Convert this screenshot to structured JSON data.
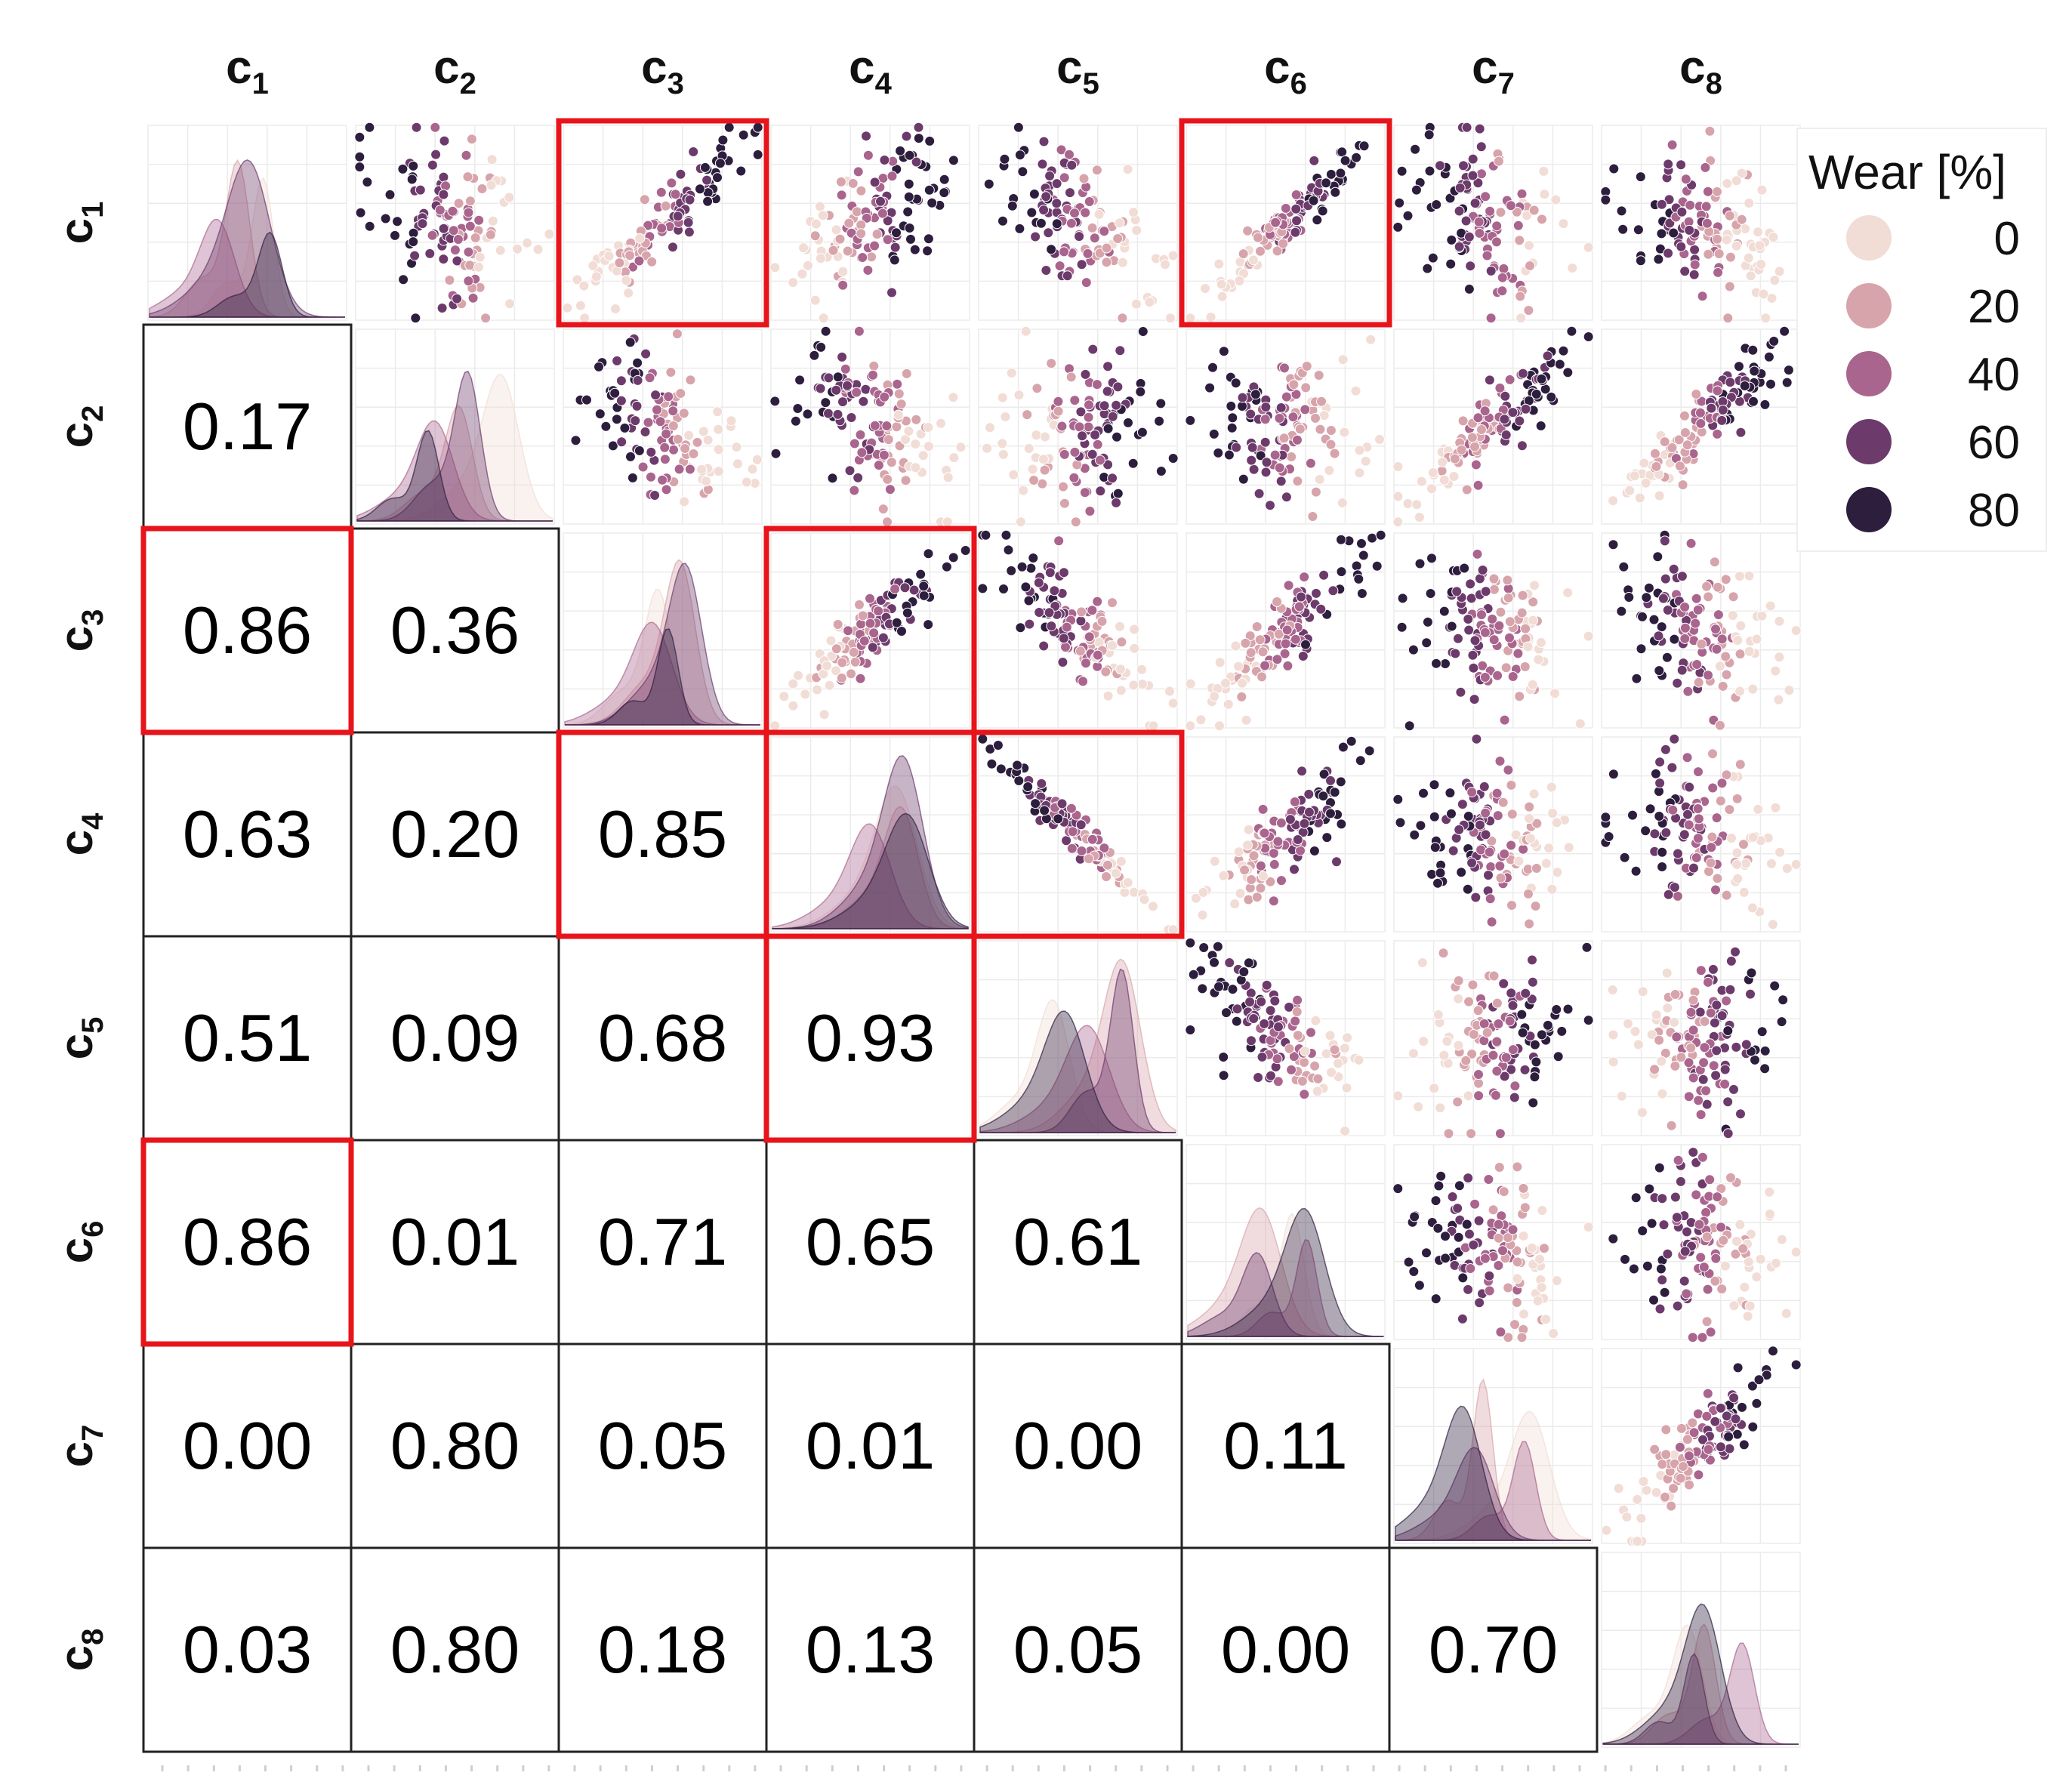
{
  "chart_data": {
    "type": "pairplot",
    "variables": [
      "c1",
      "c2",
      "c3",
      "c4",
      "c5",
      "c6",
      "c7",
      "c8"
    ],
    "column_labels": [
      {
        "base": "c",
        "sub": "1"
      },
      {
        "base": "c",
        "sub": "2"
      },
      {
        "base": "c",
        "sub": "3"
      },
      {
        "base": "c",
        "sub": "4"
      },
      {
        "base": "c",
        "sub": "5"
      },
      {
        "base": "c",
        "sub": "6"
      },
      {
        "base": "c",
        "sub": "7"
      },
      {
        "base": "c",
        "sub": "8"
      }
    ],
    "row_labels": [
      {
        "base": "c",
        "sub": "1"
      },
      {
        "base": "c",
        "sub": "2"
      },
      {
        "base": "c",
        "sub": "3"
      },
      {
        "base": "c",
        "sub": "4"
      },
      {
        "base": "c",
        "sub": "5"
      },
      {
        "base": "c",
        "sub": "6"
      },
      {
        "base": "c",
        "sub": "7"
      },
      {
        "base": "c",
        "sub": "8"
      }
    ],
    "lower_triangle": "correlation",
    "upper_triangle": "scatter",
    "diagonal": "kde",
    "correlations": [
      {
        "row": 2,
        "col": 1,
        "value": "0.17",
        "highlight": false
      },
      {
        "row": 3,
        "col": 1,
        "value": "0.86",
        "highlight": true
      },
      {
        "row": 3,
        "col": 2,
        "value": "0.36",
        "highlight": false
      },
      {
        "row": 4,
        "col": 1,
        "value": "0.63",
        "highlight": false
      },
      {
        "row": 4,
        "col": 2,
        "value": "0.20",
        "highlight": false
      },
      {
        "row": 4,
        "col": 3,
        "value": "0.85",
        "highlight": true
      },
      {
        "row": 5,
        "col": 1,
        "value": "0.51",
        "highlight": false
      },
      {
        "row": 5,
        "col": 2,
        "value": "0.09",
        "highlight": false
      },
      {
        "row": 5,
        "col": 3,
        "value": "0.68",
        "highlight": false
      },
      {
        "row": 5,
        "col": 4,
        "value": "0.93",
        "highlight": true
      },
      {
        "row": 6,
        "col": 1,
        "value": "0.86",
        "highlight": true
      },
      {
        "row": 6,
        "col": 2,
        "value": "0.01",
        "highlight": false
      },
      {
        "row": 6,
        "col": 3,
        "value": "0.71",
        "highlight": false
      },
      {
        "row": 6,
        "col": 4,
        "value": "0.65",
        "highlight": false
      },
      {
        "row": 6,
        "col": 5,
        "value": "0.61",
        "highlight": false
      },
      {
        "row": 7,
        "col": 1,
        "value": "0.00",
        "highlight": false
      },
      {
        "row": 7,
        "col": 2,
        "value": "0.80",
        "highlight": false
      },
      {
        "row": 7,
        "col": 3,
        "value": "0.05",
        "highlight": false
      },
      {
        "row": 7,
        "col": 4,
        "value": "0.01",
        "highlight": false
      },
      {
        "row": 7,
        "col": 5,
        "value": "0.00",
        "highlight": false
      },
      {
        "row": 7,
        "col": 6,
        "value": "0.11",
        "highlight": false
      },
      {
        "row": 8,
        "col": 1,
        "value": "0.03",
        "highlight": false
      },
      {
        "row": 8,
        "col": 2,
        "value": "0.80",
        "highlight": false
      },
      {
        "row": 8,
        "col": 3,
        "value": "0.18",
        "highlight": false
      },
      {
        "row": 8,
        "col": 4,
        "value": "0.13",
        "highlight": false
      },
      {
        "row": 8,
        "col": 5,
        "value": "0.05",
        "highlight": false
      },
      {
        "row": 8,
        "col": 6,
        "value": "0.00",
        "highlight": false
      },
      {
        "row": 8,
        "col": 7,
        "value": "0.70",
        "highlight": false
      }
    ],
    "highlighted_scatter": [
      {
        "row": 1,
        "col": 3
      },
      {
        "row": 1,
        "col": 6
      },
      {
        "row": 3,
        "col": 4
      },
      {
        "row": 4,
        "col": 5
      }
    ],
    "scatter_trends": {
      "1-2": -0.3,
      "1-3": 0.9,
      "1-4": 0.6,
      "1-5": -0.5,
      "1-6": 0.95,
      "1-7": -0.2,
      "1-8": -0.3,
      "2-3": -0.45,
      "2-4": -0.35,
      "2-5": 0.2,
      "2-6": -0.1,
      "2-7": 0.9,
      "2-8": 0.9,
      "3-4": 0.9,
      "3-5": -0.75,
      "3-6": 0.85,
      "3-7": -0.3,
      "3-8": -0.4,
      "4-5": -0.97,
      "4-6": 0.8,
      "4-7": -0.2,
      "4-8": -0.35,
      "5-6": -0.75,
      "5-7": 0.1,
      "5-8": 0.2,
      "6-7": -0.35,
      "6-8": -0.1,
      "7-8": 0.85
    },
    "legend": {
      "title": "Wear [%]",
      "placement": "right",
      "levels": [
        "0",
        "20",
        "40",
        "60",
        "80"
      ],
      "colors": [
        "#f1dcd6",
        "#d7a4ab",
        "#a9658d",
        "#6c3b6b",
        "#2d1e3e"
      ]
    },
    "highlight_color": "#e8141b",
    "grid": true
  }
}
